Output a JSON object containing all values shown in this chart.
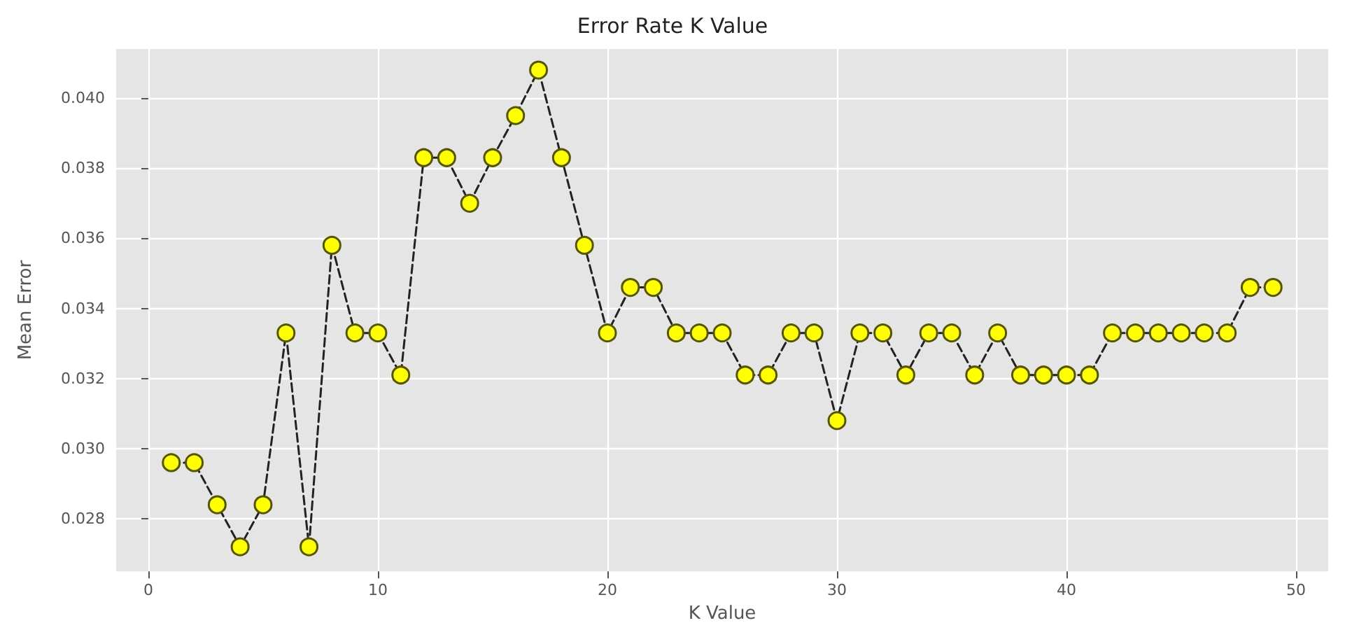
{
  "chart_data": {
    "type": "line",
    "title": "Error Rate K Value",
    "xlabel": "K Value",
    "ylabel": "Mean Error",
    "x": [
      1,
      2,
      3,
      4,
      5,
      6,
      7,
      8,
      9,
      10,
      11,
      12,
      13,
      14,
      15,
      16,
      17,
      18,
      19,
      20,
      21,
      22,
      23,
      24,
      25,
      26,
      27,
      28,
      29,
      30,
      31,
      32,
      33,
      34,
      35,
      36,
      37,
      38,
      39,
      40,
      41,
      42,
      43,
      44,
      45,
      46,
      47,
      48,
      49
    ],
    "series": [
      {
        "color": "#ffff00",
        "values": [
          0.0296,
          0.0296,
          0.0284,
          0.0272,
          0.0284,
          0.0333,
          0.0272,
          0.0358,
          0.0333,
          0.0333,
          0.0321,
          0.0383,
          0.0383,
          0.037,
          0.0383,
          0.0395,
          0.0408,
          0.0383,
          0.0358,
          0.0333,
          0.0346,
          0.0346,
          0.0333,
          0.0333,
          0.0333,
          0.0321,
          0.0321,
          0.0333,
          0.0333,
          0.0308,
          0.0333,
          0.0333,
          0.0321,
          0.0333,
          0.0333,
          0.0321,
          0.0333,
          0.0321,
          0.0321,
          0.0321,
          0.0321,
          0.0333,
          0.0333,
          0.0333,
          0.0333,
          0.0333,
          0.0333,
          0.0346,
          0.0346
        ]
      }
    ],
    "xlim": [
      -1.4,
      51.4
    ],
    "ylim": [
      0.0265,
      0.0414
    ],
    "xticks": [
      0,
      10,
      20,
      30,
      40,
      50
    ],
    "yticks": [
      0.028,
      {
        "value": 0.03,
        "label": "0.030"
      },
      0.032,
      0.034,
      0.036,
      0.038,
      {
        "value": 0.04,
        "label": "0.040"
      }
    ],
    "grid": true,
    "marker": "circle",
    "line_style": "dashed"
  }
}
